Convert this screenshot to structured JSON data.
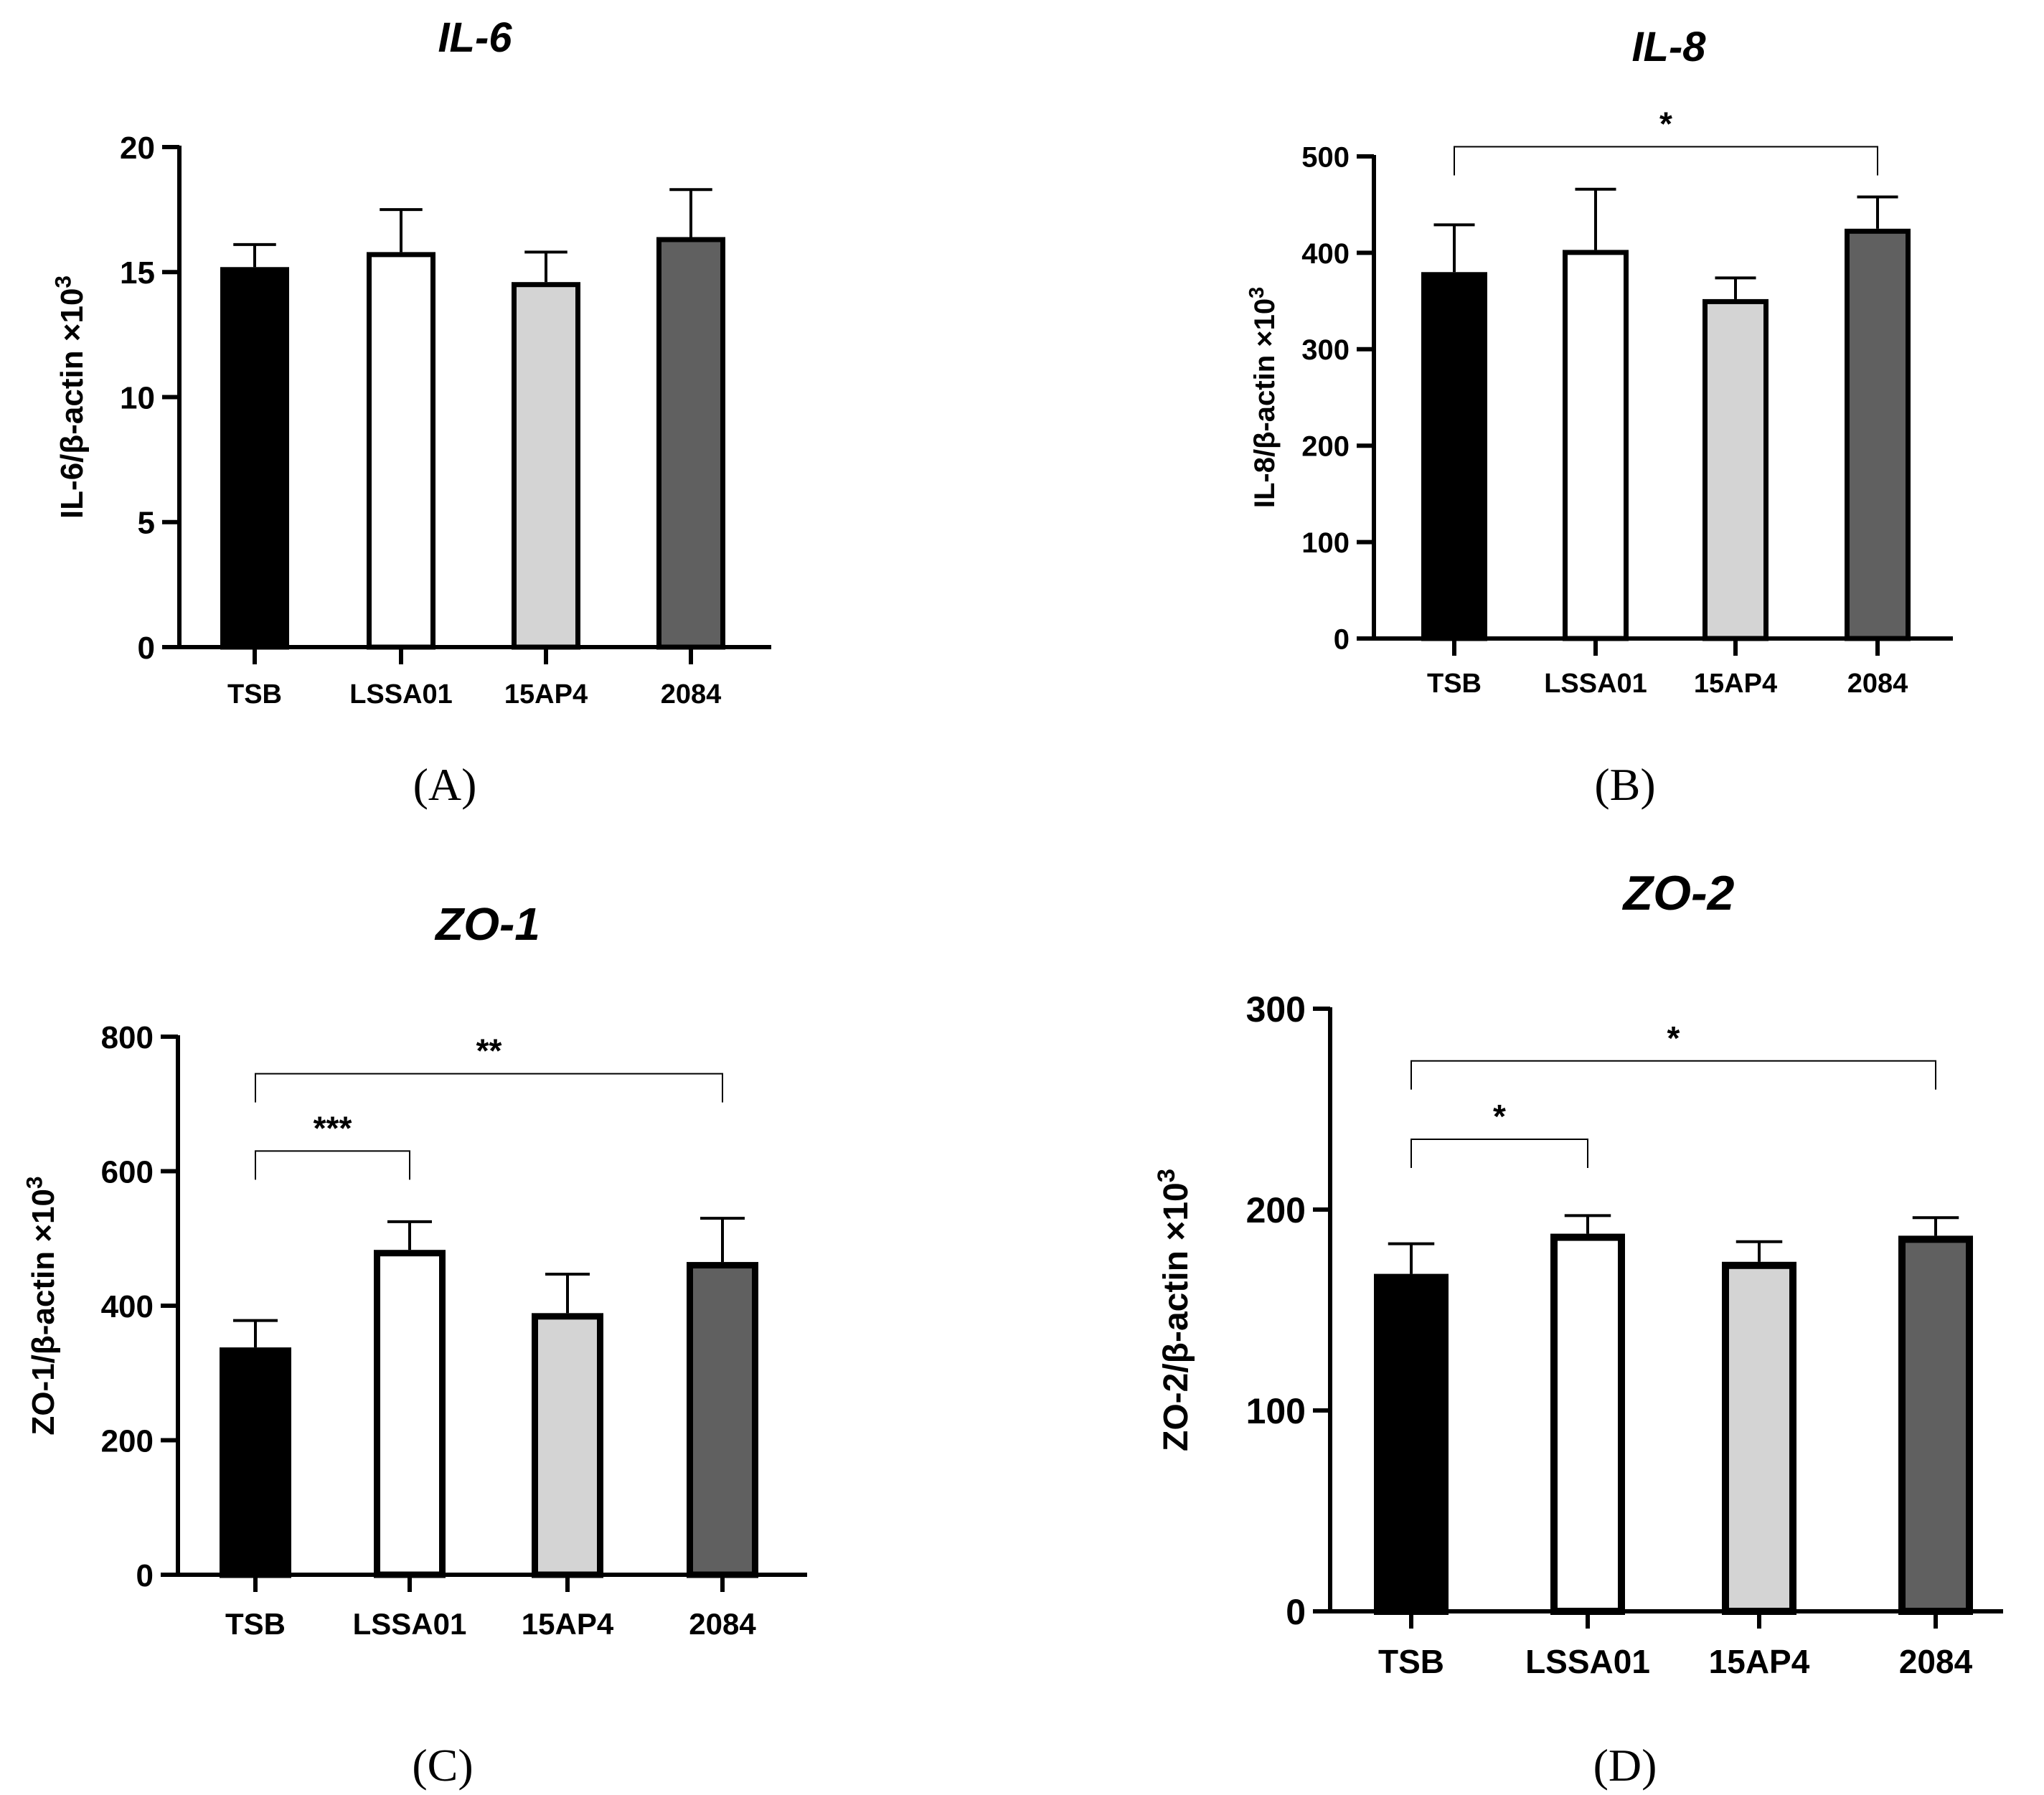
{
  "figure_colors": {
    "TSB": "#000000",
    "LSSA01": "#ffffff",
    "15AP4": "#d4d4d4",
    "2084": "#606060"
  },
  "chart_data": [
    {
      "type": "bar",
      "panel": "(A)",
      "title": "IL-6",
      "ylabel": "IL-6/β-actin ×10",
      "ylabel_exp": "3",
      "categories": [
        "TSB",
        "LSSA01",
        "15AP4",
        "2084"
      ],
      "values": [
        15.2,
        15.8,
        14.6,
        16.4
      ],
      "errors": [
        0.9,
        1.7,
        1.2,
        1.9
      ],
      "ylim": [
        0,
        20
      ],
      "yticks": [
        0,
        5,
        10,
        15,
        20
      ],
      "significance": []
    },
    {
      "type": "bar",
      "panel": "(B)",
      "title": "IL-8",
      "ylabel": "IL-8/β-actin ×10",
      "ylabel_exp": "3",
      "categories": [
        "TSB",
        "LSSA01",
        "15AP4",
        "2084"
      ],
      "values": [
        380,
        403,
        352,
        425
      ],
      "errors": [
        49,
        63,
        22,
        33
      ],
      "ylim": [
        0,
        500
      ],
      "yticks": [
        0,
        100,
        200,
        300,
        400,
        500
      ],
      "significance": [
        {
          "from": 0,
          "to": 3,
          "label": "*",
          "level": 510
        }
      ]
    },
    {
      "type": "bar",
      "panel": "(C)",
      "title": "ZO-1",
      "ylabel": "ZO-1/β-actin ×10",
      "ylabel_exp": "3",
      "categories": [
        "TSB",
        "LSSA01",
        "15AP4",
        "2084"
      ],
      "values": [
        338,
        483,
        389,
        465
      ],
      "errors": [
        40,
        42,
        58,
        65
      ],
      "ylim": [
        0,
        800
      ],
      "yticks": [
        0,
        200,
        400,
        600,
        800
      ],
      "significance": [
        {
          "from": 0,
          "to": 1,
          "label": "***",
          "level": 630
        },
        {
          "from": 0,
          "to": 3,
          "label": "**",
          "level": 745
        }
      ]
    },
    {
      "type": "bar",
      "panel": "(D)",
      "title": "ZO-2",
      "ylabel": "ZO-2/β-actin ×10",
      "ylabel_exp": "3",
      "categories": [
        "TSB",
        "LSSA01",
        "15AP4",
        "2084"
      ],
      "values": [
        168,
        188,
        174,
        187
      ],
      "errors": [
        15,
        9,
        10,
        9
      ],
      "ylim": [
        0,
        300
      ],
      "yticks": [
        0,
        100,
        200,
        300
      ],
      "significance": [
        {
          "from": 0,
          "to": 1,
          "label": "*",
          "level": 235
        },
        {
          "from": 0,
          "to": 3,
          "label": "*",
          "level": 274
        }
      ]
    }
  ]
}
